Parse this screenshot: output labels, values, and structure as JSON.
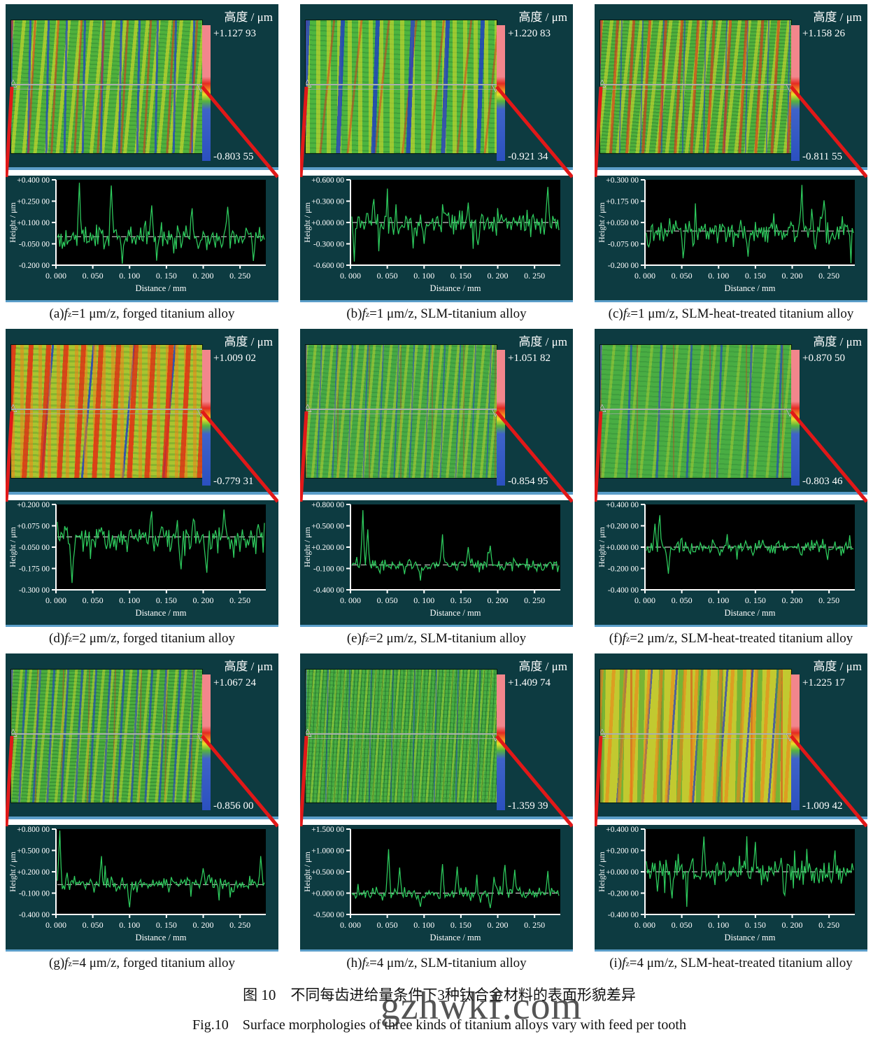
{
  "figure": {
    "caption_zh": "图 10　不同每齿进给量条件下3种钛合金材料的表面形貌差异",
    "caption_en": "Fig.10　Surface morphologies of three kinds of titanium alloys vary with feed per tooth",
    "watermark": "gzhwkf.com"
  },
  "shared": {
    "colorbar_title": "高度 / μm",
    "ylabel": "Height / μm",
    "xlabel": "Distance / mm",
    "xtick_labels": [
      "0. 000",
      "0. 050",
      "0. 100",
      "0. 150",
      "0. 200",
      "0. 250"
    ],
    "xtick_values_mm": [
      0,
      0.05,
      0.1,
      0.15,
      0.2,
      0.25
    ],
    "x_max_mm": 0.285,
    "icons": {
      "measure_left": "△",
      "measure_right": "▽"
    },
    "colors": {
      "panel_bg": "#0d3b41",
      "plot_bg": "#000000",
      "trace": "#2ecc5e",
      "callout": "#e11818",
      "edge_strip": "#5b9ec9",
      "baseline": "#c8c8c8"
    }
  },
  "panels": [
    {
      "id": "a",
      "caption": {
        "prefix": "(a) ",
        "symbol": "f",
        "subscript": "z",
        "suffix": "=1 μm/z, forged titanium alloy"
      },
      "colorbar": {
        "max": "+1.127 93",
        "min": "-0.803 55"
      },
      "chart": {
        "type": "line",
        "ymin": -0.2,
        "ymax": 0.4,
        "baseline": 0.0,
        "seed": 101,
        "amp": 0.08,
        "ytick_labels": [
          "+0.400 00",
          "+0.250 00",
          "+0.100 00",
          "-0.050 00",
          "-0.200 00"
        ],
        "spikes": [
          [
            0.03,
            0.38
          ],
          [
            0.075,
            0.36
          ],
          [
            0.09,
            -0.19
          ],
          [
            0.13,
            0.22
          ],
          [
            0.185,
            0.2
          ],
          [
            0.235,
            0.21
          ],
          [
            0.27,
            -0.17
          ]
        ]
      }
    },
    {
      "id": "b",
      "caption": {
        "prefix": "(b) ",
        "symbol": "f",
        "subscript": "z",
        "suffix": "=1 μm/z, SLM-titanium alloy"
      },
      "colorbar": {
        "max": "+1.220 83",
        "min": "-0.921 34"
      },
      "chart": {
        "type": "line",
        "ymin": -0.6,
        "ymax": 0.6,
        "baseline": 0.0,
        "seed": 102,
        "amp": 0.16,
        "ytick_labels": [
          "+0.600 00",
          "+0.300 00",
          "+0.000 00",
          "-0.300 00",
          "-0.600 00"
        ],
        "spikes": [
          [
            0.004,
            -0.55
          ],
          [
            0.03,
            0.33
          ],
          [
            0.1,
            -0.3
          ],
          [
            0.16,
            0.28
          ],
          [
            0.27,
            0.5
          ]
        ]
      }
    },
    {
      "id": "c",
      "caption": {
        "prefix": "(c) ",
        "symbol": "f",
        "subscript": "z",
        "suffix": "=1 μm/z, SLM-heat-treated titanium alloy"
      },
      "colorbar": {
        "max": "+1.158 26",
        "min": "-0.811 55"
      },
      "chart": {
        "type": "line",
        "ymin": -0.2,
        "ymax": 0.3,
        "baseline": 0.0,
        "seed": 103,
        "amp": 0.07,
        "ytick_labels": [
          "+0.300 00",
          "+0.175 00",
          "+0.050 00",
          "-0.075 00",
          "-0.200 00"
        ],
        "spikes": [
          [
            0.05,
            -0.16
          ],
          [
            0.14,
            -0.15
          ],
          [
            0.215,
            0.27
          ],
          [
            0.245,
            0.18
          ]
        ]
      }
    },
    {
      "id": "d",
      "caption": {
        "prefix": "(d) ",
        "symbol": "f",
        "subscript": "z",
        "suffix": "=2 μm/z, forged titanium alloy"
      },
      "colorbar": {
        "max": "+1.009 02",
        "min": "-0.779 31"
      },
      "chart": {
        "type": "line",
        "ymin": -0.3,
        "ymax": 0.2,
        "baseline": 0.01,
        "seed": 104,
        "amp": 0.07,
        "ytick_labels": [
          "+0.200 00",
          "+0.075 00",
          "-0.050 00",
          "-0.175 00",
          "-0.300 00"
        ],
        "spikes": [
          [
            0.02,
            -0.26
          ],
          [
            0.13,
            0.16
          ],
          [
            0.17,
            -0.18
          ],
          [
            0.205,
            -0.2
          ],
          [
            0.23,
            0.17
          ]
        ]
      }
    },
    {
      "id": "e",
      "caption": {
        "prefix": "(e) ",
        "symbol": "f",
        "subscript": "z",
        "suffix": "=2 μm/z, SLM-titanium alloy"
      },
      "colorbar": {
        "max": "+1.051 82",
        "min": "-0.854 95"
      },
      "chart": {
        "type": "line",
        "ymin": -0.4,
        "ymax": 0.8,
        "baseline": -0.05,
        "seed": 105,
        "amp": 0.08,
        "ytick_labels": [
          "+0.800 00",
          "+0.500 00",
          "+0.200 00",
          "-0.100 00",
          "-0.400 00"
        ],
        "spikes": [
          [
            0.015,
            0.72
          ],
          [
            0.022,
            0.45
          ],
          [
            0.095,
            -0.27
          ],
          [
            0.125,
            0.38
          ],
          [
            0.16,
            0.2
          ],
          [
            0.19,
            0.22
          ]
        ]
      }
    },
    {
      "id": "f",
      "caption": {
        "prefix": "(f) ",
        "symbol": "f",
        "subscript": "z",
        "suffix": "=2 μm/z, SLM-heat-treated titanium alloy"
      },
      "colorbar": {
        "max": "+0.870 50",
        "min": "-0.803 46"
      },
      "chart": {
        "type": "line",
        "ymin": -0.4,
        "ymax": 0.4,
        "baseline": 0.0,
        "seed": 106,
        "amp": 0.06,
        "ytick_labels": [
          "+0.400 00",
          "+0.200 00",
          "+0.000 00",
          "-0.200 00",
          "-0.400 00"
        ],
        "spikes": [
          [
            0.012,
            0.22
          ],
          [
            0.018,
            0.3
          ],
          [
            0.03,
            -0.25
          ],
          [
            0.25,
            -0.12
          ]
        ]
      }
    },
    {
      "id": "g",
      "caption": {
        "prefix": "(g) ",
        "symbol": "f",
        "subscript": "z",
        "suffix": "=4 μm/z, forged titanium alloy"
      },
      "colorbar": {
        "max": "+1.067 24",
        "min": "-0.856 00"
      },
      "chart": {
        "type": "line",
        "ymin": -0.4,
        "ymax": 0.8,
        "baseline": 0.02,
        "seed": 107,
        "amp": 0.1,
        "ytick_labels": [
          "+0.800 00",
          "+0.500 00",
          "+0.200 00",
          "-0.100 00",
          "-0.400 00"
        ],
        "spikes": [
          [
            0.003,
            0.78
          ],
          [
            0.06,
            0.42
          ],
          [
            0.1,
            -0.3
          ],
          [
            0.2,
            0.25
          ],
          [
            0.28,
            0.42
          ]
        ]
      }
    },
    {
      "id": "h",
      "caption": {
        "prefix": "(h) ",
        "symbol": "f",
        "subscript": "z",
        "suffix": "=4 μm/z, SLM-titanium alloy"
      },
      "colorbar": {
        "max": "+1.409 74",
        "min": "-1.359 39"
      },
      "chart": {
        "type": "line",
        "ymin": -0.5,
        "ymax": 1.5,
        "baseline": 0.0,
        "seed": 108,
        "amp": 0.13,
        "ytick_labels": [
          "+1.500 00",
          "+1.000 00",
          "+0.500 00",
          "+0.000 00",
          "-0.500 00"
        ],
        "spikes": [
          [
            0.05,
            1.03
          ],
          [
            0.065,
            0.6
          ],
          [
            0.095,
            -0.32
          ],
          [
            0.125,
            0.68
          ],
          [
            0.145,
            0.62
          ],
          [
            0.19,
            -0.35
          ],
          [
            0.21,
            0.66
          ],
          [
            0.225,
            0.55
          ],
          [
            0.27,
            0.52
          ]
        ]
      }
    },
    {
      "id": "i",
      "caption": {
        "prefix": "(i) ",
        "symbol": "f",
        "subscript": "z",
        "suffix": "=4 μm/z, SLM-heat-treated titanium alloy"
      },
      "colorbar": {
        "max": "+1.225 17",
        "min": "-1.009 42"
      },
      "chart": {
        "type": "line",
        "ymin": -0.4,
        "ymax": 0.4,
        "baseline": 0.0,
        "seed": 109,
        "amp": 0.11,
        "ytick_labels": [
          "+0.400 00",
          "+0.200 00",
          "+0.000 00",
          "-0.200 00",
          "-0.400 00"
        ],
        "spikes": [
          [
            0.035,
            -0.25
          ],
          [
            0.08,
            0.33
          ],
          [
            0.15,
            0.28
          ],
          [
            0.19,
            -0.22
          ],
          [
            0.26,
            0.2
          ]
        ]
      }
    }
  ]
}
